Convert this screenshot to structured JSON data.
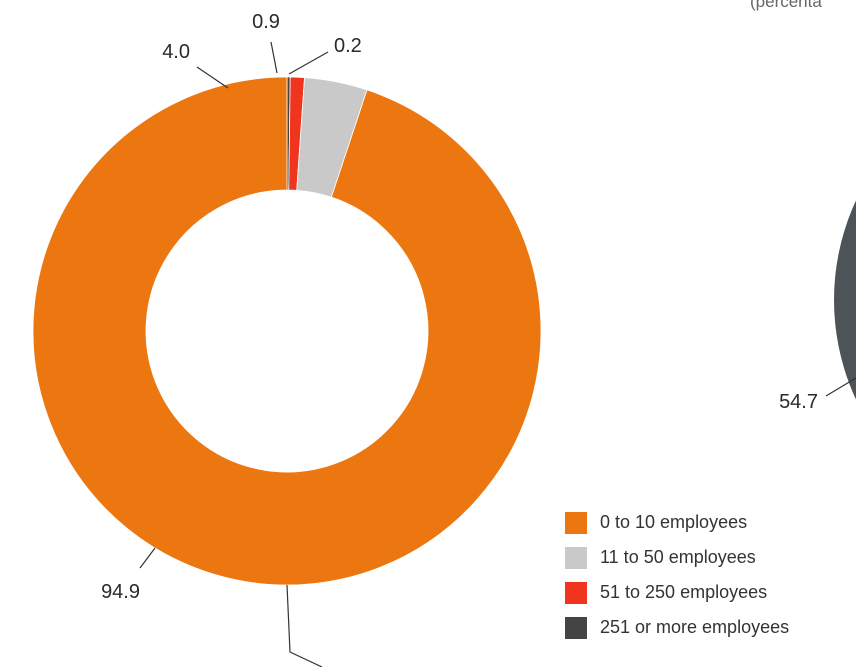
{
  "chart_data": [
    {
      "type": "pie",
      "style": "donut",
      "categories": [
        "0 to 10 employees",
        "11 to 50 employees",
        "51 to 250 employees",
        "251 or more employees"
      ],
      "values": [
        94.9,
        4.0,
        0.9,
        0.2
      ],
      "value_labels": [
        "94.9",
        "4.0",
        "0.9",
        "0.2"
      ],
      "colors": [
        "#ec760f",
        "#c9c9c9",
        "#f0341e",
        "#444444"
      ]
    },
    {
      "type": "pie",
      "partially_visible": true,
      "visible_value_labels": [
        "54.7"
      ],
      "colors": [
        "#4d5457"
      ]
    }
  ],
  "note_fragment": "(percenta",
  "legend": {
    "position": "bottom-right",
    "items": [
      {
        "label": "0 to 10 employees",
        "color": "#ec760f"
      },
      {
        "label": "11 to 50 employees",
        "color": "#c9c9c9"
      },
      {
        "label": "51 to 250 employees",
        "color": "#f0341e"
      },
      {
        "label": "251 or more employees",
        "color": "#444444"
      }
    ]
  }
}
